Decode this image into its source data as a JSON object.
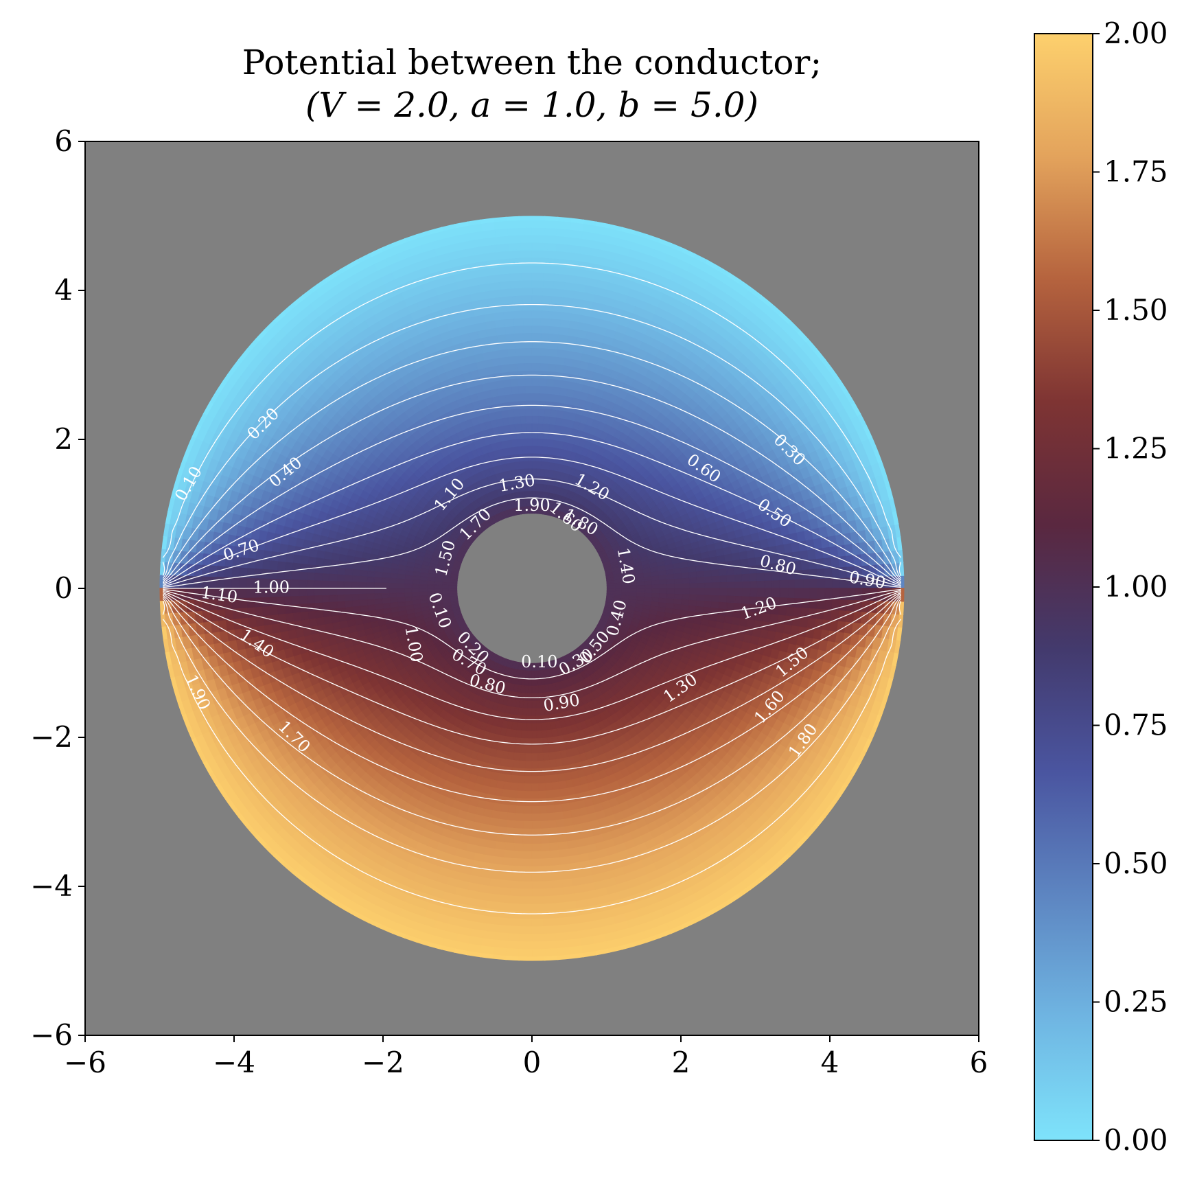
{
  "chart_data": {
    "type": "heatmap",
    "title_line1": "Potential between the conductor;",
    "title_line2": "(V = 2.0, a = 1.0, b = 5.0)",
    "parameters": {
      "V": 2.0,
      "a": 1.0,
      "b": 5.0
    },
    "xlabel": "",
    "ylabel": "",
    "xlim": [
      -6,
      6
    ],
    "ylim": [
      -6,
      6
    ],
    "xticks": [
      -6,
      -4,
      -2,
      0,
      2,
      4,
      6
    ],
    "yticks": [
      -6,
      -4,
      -2,
      0,
      2,
      4,
      6
    ],
    "xtick_labels": [
      "−6",
      "−4",
      "−2",
      "0",
      "2",
      "4",
      "6"
    ],
    "ytick_labels": [
      "−6",
      "−4",
      "−2",
      "0",
      "2",
      "4",
      "6"
    ],
    "colorbar": {
      "range": [
        0.0,
        2.0
      ],
      "ticks": [
        0.0,
        0.25,
        0.5,
        0.75,
        1.0,
        1.25,
        1.5,
        1.75,
        2.0
      ],
      "tick_labels": [
        "0.00",
        "0.25",
        "0.50",
        "0.75",
        "1.00",
        "1.25",
        "1.50",
        "1.75",
        "2.00"
      ],
      "colormap": [
        "#7ee3fb",
        "#6fb5e2",
        "#5d85c1",
        "#4a55a0",
        "#433a6d",
        "#5a2840",
        "#7e3433",
        "#b5633e",
        "#e3a35c",
        "#fdd06d"
      ]
    },
    "background_color": "#808080",
    "contour_color": "#ffffff",
    "contour_levels": [
      0.1,
      0.2,
      0.3,
      0.4,
      0.5,
      0.6,
      0.7,
      0.8,
      0.9,
      1.0,
      1.1,
      1.2,
      1.3,
      1.4,
      1.5,
      1.6,
      1.7,
      1.8,
      1.9
    ],
    "contour_labels": [
      {
        "text": "0.10",
        "x": -4.6,
        "y": 1.4,
        "rot": -60
      },
      {
        "text": "0.20",
        "x": -3.6,
        "y": 2.2,
        "rot": -45
      },
      {
        "text": "0.40",
        "x": -3.3,
        "y": 1.55,
        "rot": -40
      },
      {
        "text": "0.70",
        "x": -3.9,
        "y": 0.5,
        "rot": -18
      },
      {
        "text": "1.00",
        "x": -3.5,
        "y": 0.0,
        "rot": 0
      },
      {
        "text": "1.10",
        "x": -4.2,
        "y": -0.1,
        "rot": 8
      },
      {
        "text": "1.40",
        "x": -3.7,
        "y": -0.75,
        "rot": 35
      },
      {
        "text": "1.90",
        "x": -4.5,
        "y": -1.4,
        "rot": 65
      },
      {
        "text": "1.70",
        "x": -3.2,
        "y": -2.0,
        "rot": 45
      },
      {
        "text": "0.30",
        "x": 3.45,
        "y": 1.85,
        "rot": 45
      },
      {
        "text": "0.60",
        "x": 2.3,
        "y": 1.6,
        "rot": 35
      },
      {
        "text": "0.50",
        "x": 3.25,
        "y": 1.0,
        "rot": 35
      },
      {
        "text": "0.80",
        "x": 3.3,
        "y": 0.3,
        "rot": 15
      },
      {
        "text": "0.90",
        "x": 4.5,
        "y": 0.1,
        "rot": 10
      },
      {
        "text": "1.20",
        "x": 3.05,
        "y": -0.28,
        "rot": -20
      },
      {
        "text": "1.50",
        "x": 3.5,
        "y": -1.0,
        "rot": -40
      },
      {
        "text": "1.30",
        "x": 2.0,
        "y": -1.35,
        "rot": -35
      },
      {
        "text": "1.60",
        "x": 3.2,
        "y": -1.6,
        "rot": -50
      },
      {
        "text": "1.80",
        "x": 3.65,
        "y": -2.05,
        "rot": -55
      },
      {
        "text": "1.10",
        "x": -1.1,
        "y": 1.25,
        "rot": -50
      },
      {
        "text": "1.30",
        "x": -0.2,
        "y": 1.4,
        "rot": -10
      },
      {
        "text": "1.20",
        "x": 0.8,
        "y": 1.35,
        "rot": 30
      },
      {
        "text": "1.60",
        "x": 0.45,
        "y": 0.95,
        "rot": 40
      },
      {
        "text": "1.80",
        "x": 0.65,
        "y": 0.88,
        "rot": 30
      },
      {
        "text": "1.90",
        "x": 0.0,
        "y": 1.1,
        "rot": 0
      },
      {
        "text": "1.70",
        "x": -0.75,
        "y": 0.85,
        "rot": -45
      },
      {
        "text": "1.50",
        "x": -1.15,
        "y": 0.4,
        "rot": -75
      },
      {
        "text": "1.40",
        "x": 1.25,
        "y": 0.3,
        "rot": 80
      },
      {
        "text": "1.00",
        "x": -1.6,
        "y": -0.75,
        "rot": 80
      },
      {
        "text": "0.10",
        "x": -1.25,
        "y": -0.3,
        "rot": 70
      },
      {
        "text": "0.20",
        "x": -0.8,
        "y": -0.8,
        "rot": 45
      },
      {
        "text": "0.70",
        "x": -0.85,
        "y": -1.0,
        "rot": 30
      },
      {
        "text": "0.80",
        "x": -0.6,
        "y": -1.3,
        "rot": 15
      },
      {
        "text": "0.10",
        "x": 0.1,
        "y": -1.0,
        "rot": 0
      },
      {
        "text": "0.30",
        "x": 0.6,
        "y": -1.0,
        "rot": -30
      },
      {
        "text": "0.50",
        "x": 0.85,
        "y": -0.8,
        "rot": -50
      },
      {
        "text": "0.40",
        "x": 1.15,
        "y": -0.4,
        "rot": -75
      },
      {
        "text": "0.90",
        "x": 0.4,
        "y": -1.55,
        "rot": -10
      }
    ]
  }
}
